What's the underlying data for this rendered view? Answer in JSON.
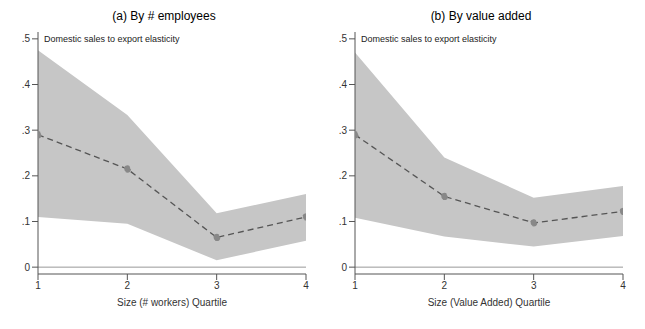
{
  "chart_data": [
    {
      "type": "line",
      "title": "(a) By # employees",
      "annotation": "Domestic sales to export elasticity",
      "x_label": "Size (# workers) Quartile",
      "x": [
        1,
        2,
        3,
        4
      ],
      "values": [
        0.29,
        0.215,
        0.065,
        0.11
      ],
      "lower": [
        0.11,
        0.095,
        0.015,
        0.058
      ],
      "upper": [
        0.475,
        0.333,
        0.118,
        0.16
      ],
      "xlim": [
        1,
        4
      ],
      "xticks": [
        1,
        2,
        3,
        4
      ],
      "ylim": [
        -0.015,
        0.515
      ],
      "yticks": [
        0,
        {
          "value": 0.1,
          "label": ".1"
        },
        {
          "value": 0.2,
          "label": ".2"
        },
        {
          "value": 0.3,
          "label": ".3"
        },
        {
          "value": 0.4,
          "label": ".4"
        },
        {
          "value": 0.5,
          "label": ".5"
        }
      ],
      "reference_line": 0,
      "color": "#555555",
      "line_style": "dashed",
      "marker": "circle"
    },
    {
      "type": "line",
      "title": "(b) By value added",
      "annotation": "Domestic sales to export elasticity",
      "x_label": "Size (Value Added) Quartile",
      "x": [
        1,
        2,
        3,
        4
      ],
      "values": [
        0.29,
        0.155,
        0.097,
        0.122
      ],
      "lower": [
        0.108,
        0.067,
        0.045,
        0.068
      ],
      "upper": [
        0.47,
        0.24,
        0.152,
        0.178
      ],
      "xlim": [
        1,
        4
      ],
      "xticks": [
        1,
        2,
        3,
        4
      ],
      "ylim": [
        -0.015,
        0.515
      ],
      "yticks": [
        0,
        {
          "value": 0.1,
          "label": ".1"
        },
        {
          "value": 0.2,
          "label": ".2"
        },
        {
          "value": 0.3,
          "label": ".3"
        },
        {
          "value": 0.4,
          "label": ".4"
        },
        {
          "value": 0.5,
          "label": ".5"
        }
      ],
      "reference_line": 0,
      "color": "#555555",
      "line_style": "dashed",
      "marker": "circle"
    }
  ]
}
